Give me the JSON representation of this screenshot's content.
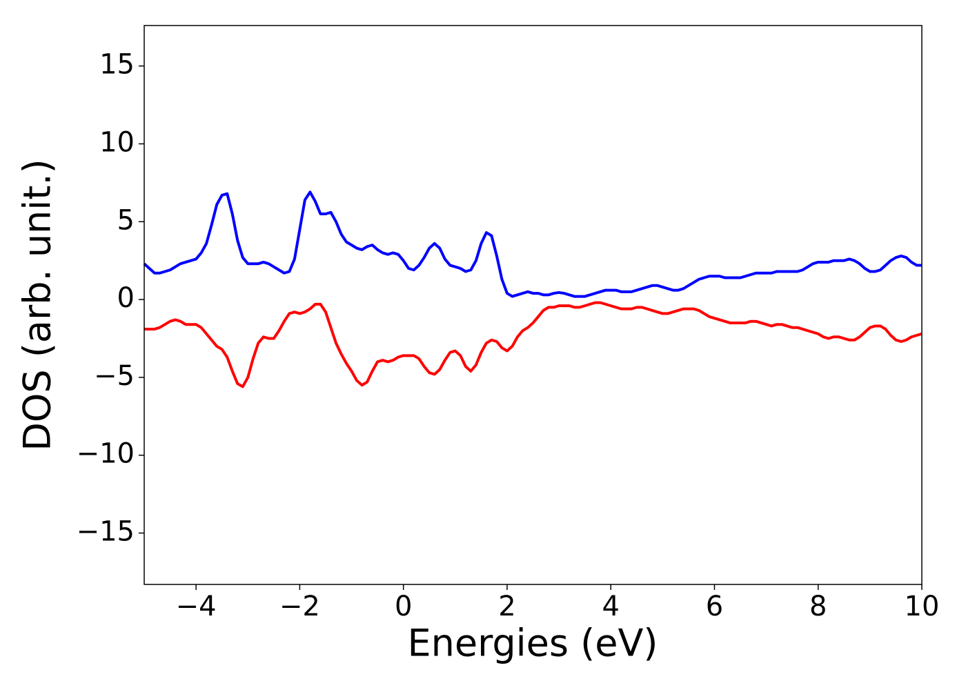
{
  "chart_data": {
    "type": "line",
    "x_label": "Energies (eV)",
    "y_label": "DOS (arb. unit.)",
    "x": [
      -5.0,
      -4.9,
      -4.8,
      -4.7,
      -4.6,
      -4.5,
      -4.4,
      -4.3,
      -4.2,
      -4.1,
      -4.0,
      -3.9,
      -3.8,
      -3.7,
      -3.6,
      -3.5,
      -3.4,
      -3.3,
      -3.2,
      -3.1,
      -3.0,
      -2.9,
      -2.8,
      -2.7,
      -2.6,
      -2.5,
      -2.4,
      -2.3,
      -2.2,
      -2.1,
      -2.0,
      -1.9,
      -1.8,
      -1.7,
      -1.6,
      -1.5,
      -1.4,
      -1.3,
      -1.2,
      -1.1,
      -1.0,
      -0.9,
      -0.8,
      -0.7,
      -0.6,
      -0.5,
      -0.4,
      -0.3,
      -0.2,
      -0.1,
      0.0,
      0.1,
      0.2,
      0.3,
      0.4,
      0.5,
      0.6,
      0.7,
      0.8,
      0.9,
      1.0,
      1.1,
      1.2,
      1.3,
      1.4,
      1.5,
      1.6,
      1.7,
      1.8,
      1.9,
      2.0,
      2.1,
      2.2,
      2.3,
      2.4,
      2.5,
      2.6,
      2.7,
      2.8,
      2.9,
      3.0,
      3.1,
      3.2,
      3.3,
      3.4,
      3.5,
      3.6,
      3.7,
      3.8,
      3.9,
      4.0,
      4.1,
      4.2,
      4.3,
      4.4,
      4.5,
      4.6,
      4.7,
      4.8,
      4.9,
      5.0,
      5.1,
      5.2,
      5.3,
      5.4,
      5.5,
      5.6,
      5.7,
      5.8,
      5.9,
      6.0,
      6.1,
      6.2,
      6.3,
      6.4,
      6.5,
      6.6,
      6.7,
      6.8,
      6.9,
      7.0,
      7.1,
      7.2,
      7.3,
      7.4,
      7.5,
      7.6,
      7.7,
      7.8,
      7.9,
      8.0,
      8.1,
      8.2,
      8.3,
      8.4,
      8.5,
      8.6,
      8.7,
      8.8,
      8.9,
      9.0,
      9.1,
      9.2,
      9.3,
      9.4,
      9.5,
      9.6,
      9.7,
      9.8,
      9.9,
      10.0
    ],
    "series": [
      {
        "color": "#0000ff",
        "values": [
          2.3,
          2.0,
          1.7,
          1.7,
          1.8,
          1.9,
          2.1,
          2.3,
          2.4,
          2.5,
          2.6,
          3.0,
          3.6,
          4.8,
          6.1,
          6.7,
          6.8,
          5.5,
          3.8,
          2.7,
          2.3,
          2.3,
          2.3,
          2.4,
          2.3,
          2.1,
          1.9,
          1.7,
          1.8,
          2.6,
          4.5,
          6.4,
          6.9,
          6.3,
          5.5,
          5.5,
          5.6,
          5.0,
          4.2,
          3.7,
          3.5,
          3.3,
          3.2,
          3.4,
          3.5,
          3.2,
          3.0,
          2.9,
          3.0,
          2.9,
          2.5,
          2.0,
          1.9,
          2.2,
          2.7,
          3.3,
          3.6,
          3.3,
          2.6,
          2.2,
          2.1,
          2.0,
          1.8,
          1.9,
          2.5,
          3.6,
          4.3,
          4.1,
          2.8,
          1.3,
          0.4,
          0.2,
          0.3,
          0.4,
          0.5,
          0.4,
          0.4,
          0.3,
          0.3,
          0.4,
          0.45,
          0.4,
          0.3,
          0.2,
          0.2,
          0.2,
          0.3,
          0.4,
          0.5,
          0.6,
          0.6,
          0.6,
          0.5,
          0.5,
          0.5,
          0.6,
          0.7,
          0.8,
          0.9,
          0.9,
          0.8,
          0.7,
          0.6,
          0.6,
          0.7,
          0.9,
          1.1,
          1.3,
          1.4,
          1.5,
          1.5,
          1.5,
          1.4,
          1.4,
          1.4,
          1.4,
          1.5,
          1.6,
          1.7,
          1.7,
          1.7,
          1.7,
          1.8,
          1.8,
          1.8,
          1.8,
          1.8,
          1.9,
          2.1,
          2.3,
          2.4,
          2.4,
          2.4,
          2.5,
          2.5,
          2.5,
          2.6,
          2.5,
          2.3,
          2.0,
          1.8,
          1.8,
          1.9,
          2.2,
          2.5,
          2.7,
          2.8,
          2.7,
          2.4,
          2.2,
          2.2
        ]
      },
      {
        "color": "#ff0000",
        "values": [
          -1.9,
          -1.9,
          -1.9,
          -1.8,
          -1.6,
          -1.4,
          -1.3,
          -1.4,
          -1.6,
          -1.6,
          -1.6,
          -1.8,
          -2.2,
          -2.6,
          -3.0,
          -3.2,
          -3.7,
          -4.6,
          -5.4,
          -5.6,
          -5.0,
          -3.8,
          -2.8,
          -2.4,
          -2.5,
          -2.5,
          -2.0,
          -1.4,
          -0.9,
          -0.8,
          -0.9,
          -0.8,
          -0.6,
          -0.3,
          -0.3,
          -0.8,
          -1.8,
          -2.8,
          -3.5,
          -4.1,
          -4.6,
          -5.2,
          -5.5,
          -5.3,
          -4.6,
          -4.0,
          -3.9,
          -4.0,
          -3.9,
          -3.7,
          -3.6,
          -3.6,
          -3.6,
          -3.8,
          -4.3,
          -4.7,
          -4.8,
          -4.5,
          -3.9,
          -3.4,
          -3.3,
          -3.6,
          -4.3,
          -4.6,
          -4.2,
          -3.4,
          -2.8,
          -2.6,
          -2.7,
          -3.1,
          -3.3,
          -3.0,
          -2.4,
          -2.0,
          -1.8,
          -1.5,
          -1.1,
          -0.7,
          -0.5,
          -0.5,
          -0.4,
          -0.4,
          -0.4,
          -0.5,
          -0.5,
          -0.4,
          -0.3,
          -0.2,
          -0.2,
          -0.3,
          -0.4,
          -0.5,
          -0.6,
          -0.6,
          -0.6,
          -0.5,
          -0.5,
          -0.6,
          -0.7,
          -0.8,
          -0.9,
          -0.9,
          -0.8,
          -0.7,
          -0.6,
          -0.6,
          -0.6,
          -0.7,
          -0.9,
          -1.1,
          -1.2,
          -1.3,
          -1.4,
          -1.5,
          -1.5,
          -1.5,
          -1.5,
          -1.4,
          -1.4,
          -1.5,
          -1.6,
          -1.7,
          -1.6,
          -1.6,
          -1.7,
          -1.8,
          -1.8,
          -1.9,
          -2.0,
          -2.1,
          -2.2,
          -2.4,
          -2.5,
          -2.4,
          -2.4,
          -2.5,
          -2.6,
          -2.6,
          -2.4,
          -2.1,
          -1.8,
          -1.7,
          -1.7,
          -1.9,
          -2.3,
          -2.6,
          -2.7,
          -2.6,
          -2.4,
          -2.3,
          -2.2
        ]
      }
    ],
    "xlim": [
      -5,
      10
    ],
    "xticks": [
      {
        "value": -4,
        "label": "−4"
      },
      {
        "value": -2,
        "label": "−2"
      },
      0,
      2,
      4,
      6,
      8,
      10
    ],
    "ylim": [
      -18.3,
      17.6
    ],
    "yticks": [
      {
        "value": -15,
        "label": "−15"
      },
      {
        "value": -10,
        "label": "−10"
      },
      {
        "value": -5,
        "label": "−5"
      },
      0,
      5,
      10,
      15
    ],
    "grid": false
  }
}
